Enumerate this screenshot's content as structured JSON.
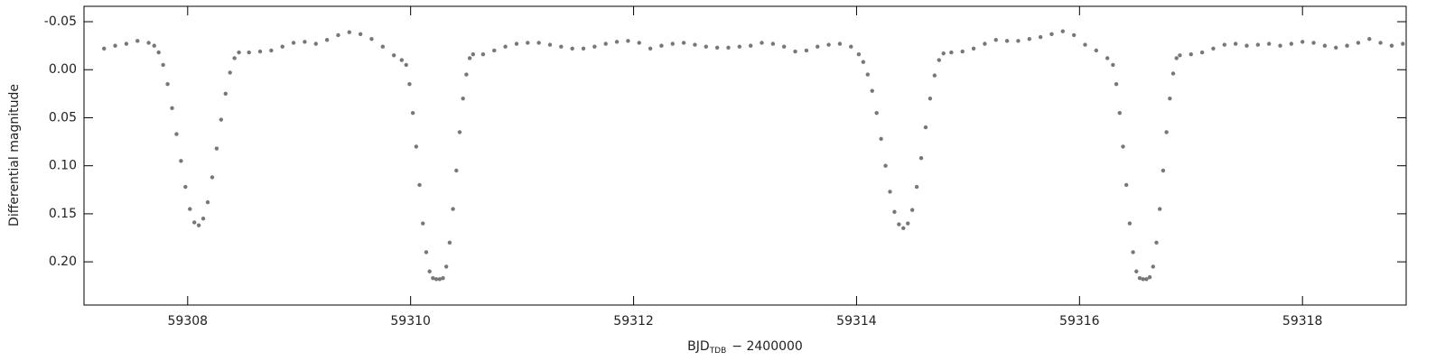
{
  "chart_data": {
    "type": "scatter",
    "y_label": "Differential magnitude",
    "x_label": {
      "main": "BJD",
      "sub": "TDB",
      "rest": "− 2400000"
    },
    "color": "#777777",
    "xlim": [
      59307.07,
      59318.93
    ],
    "ylim": [
      -0.066,
      0.245
    ],
    "y_inverted": true,
    "xticks": [
      59308,
      59310,
      59312,
      59314,
      59316,
      59318
    ],
    "yticks": [
      -0.05,
      {
        "value": 0,
        "label": "0.00"
      },
      0.05,
      {
        "value": 0.1,
        "label": "0.10"
      },
      0.15,
      {
        "value": 0.2,
        "label": "0.20"
      }
    ],
    "x": [
      59307.25,
      59307.35,
      59307.45,
      59307.55,
      59307.65,
      59307.7,
      59307.74,
      59307.78,
      59307.82,
      59307.86,
      59307.9,
      59307.94,
      59307.98,
      59308.02,
      59308.06,
      59308.1,
      59308.14,
      59308.18,
      59308.22,
      59308.26,
      59308.3,
      59308.34,
      59308.38,
      59308.42,
      59308.46,
      59308.55,
      59308.65,
      59308.75,
      59308.85,
      59308.95,
      59309.05,
      59309.15,
      59309.25,
      59309.35,
      59309.45,
      59309.55,
      59309.65,
      59309.75,
      59309.85,
      59309.92,
      59309.96,
      59309.99,
      59310.02,
      59310.05,
      59310.08,
      59310.11,
      59310.14,
      59310.17,
      59310.2,
      59310.23,
      59310.26,
      59310.29,
      59310.32,
      59310.35,
      59310.38,
      59310.41,
      59310.44,
      59310.47,
      59310.5,
      59310.53,
      59310.56,
      59310.65,
      59310.75,
      59310.85,
      59310.95,
      59311.05,
      59311.15,
      59311.25,
      59311.35,
      59311.45,
      59311.55,
      59311.65,
      59311.75,
      59311.85,
      59311.95,
      59312.05,
      59312.15,
      59312.25,
      59312.35,
      59312.45,
      59312.55,
      59312.65,
      59312.75,
      59312.85,
      59312.95,
      59313.05,
      59313.15,
      59313.25,
      59313.35,
      59313.45,
      59313.55,
      59313.65,
      59313.75,
      59313.85,
      59313.95,
      59314.02,
      59314.06,
      59314.1,
      59314.14,
      59314.18,
      59314.22,
      59314.26,
      59314.3,
      59314.34,
      59314.38,
      59314.42,
      59314.46,
      59314.5,
      59314.54,
      59314.58,
      59314.62,
      59314.66,
      59314.7,
      59314.74,
      59314.78,
      59314.85,
      59314.95,
      59315.05,
      59315.15,
      59315.25,
      59315.35,
      59315.45,
      59315.55,
      59315.65,
      59315.75,
      59315.85,
      59315.95,
      59316.05,
      59316.15,
      59316.25,
      59316.3,
      59316.33,
      59316.36,
      59316.39,
      59316.42,
      59316.45,
      59316.48,
      59316.51,
      59316.54,
      59316.57,
      59316.6,
      59316.63,
      59316.66,
      59316.69,
      59316.72,
      59316.75,
      59316.78,
      59316.81,
      59316.84,
      59316.87,
      59316.9,
      59317.0,
      59317.1,
      59317.2,
      59317.3,
      59317.4,
      59317.5,
      59317.6,
      59317.7,
      59317.8,
      59317.9,
      59318.0,
      59318.1,
      59318.2,
      59318.3,
      59318.4,
      59318.5,
      59318.6,
      59318.7,
      59318.8,
      59318.9
    ],
    "values": [
      -0.022,
      -0.025,
      -0.027,
      -0.03,
      -0.028,
      -0.025,
      -0.018,
      -0.005,
      0.015,
      0.04,
      0.067,
      0.095,
      0.122,
      0.145,
      0.159,
      0.162,
      0.155,
      0.138,
      0.112,
      0.082,
      0.052,
      0.025,
      0.003,
      -0.012,
      -0.018,
      -0.018,
      -0.019,
      -0.02,
      -0.024,
      -0.028,
      -0.029,
      -0.027,
      -0.031,
      -0.036,
      -0.039,
      -0.037,
      -0.032,
      -0.024,
      -0.015,
      -0.01,
      -0.005,
      0.015,
      0.045,
      0.08,
      0.12,
      0.16,
      0.19,
      0.21,
      0.217,
      0.218,
      0.218,
      0.217,
      0.205,
      0.18,
      0.145,
      0.105,
      0.065,
      0.03,
      0.005,
      -0.012,
      -0.016,
      -0.016,
      -0.02,
      -0.024,
      -0.027,
      -0.028,
      -0.028,
      -0.026,
      -0.024,
      -0.022,
      -0.022,
      -0.024,
      -0.027,
      -0.029,
      -0.03,
      -0.028,
      -0.022,
      -0.025,
      -0.027,
      -0.028,
      -0.026,
      -0.024,
      -0.023,
      -0.023,
      -0.024,
      -0.025,
      -0.028,
      -0.027,
      -0.024,
      -0.019,
      -0.02,
      -0.024,
      -0.026,
      -0.027,
      -0.024,
      -0.016,
      -0.008,
      0.005,
      0.022,
      0.045,
      0.072,
      0.1,
      0.127,
      0.148,
      0.161,
      0.165,
      0.16,
      0.146,
      0.122,
      0.092,
      0.06,
      0.03,
      0.006,
      -0.01,
      -0.017,
      -0.018,
      -0.019,
      -0.022,
      -0.027,
      -0.031,
      -0.03,
      -0.03,
      -0.032,
      -0.034,
      -0.037,
      -0.04,
      -0.036,
      -0.026,
      -0.02,
      -0.012,
      -0.005,
      0.015,
      0.045,
      0.08,
      0.12,
      0.16,
      0.19,
      0.21,
      0.217,
      0.218,
      0.218,
      0.216,
      0.205,
      0.18,
      0.145,
      0.105,
      0.065,
      0.03,
      0.004,
      -0.012,
      -0.015,
      -0.016,
      -0.018,
      -0.022,
      -0.026,
      -0.027,
      -0.025,
      -0.026,
      -0.027,
      -0.025,
      -0.027,
      -0.029,
      -0.028,
      -0.025,
      -0.023,
      -0.025,
      -0.028,
      -0.032,
      -0.028,
      -0.025,
      -0.027
    ]
  }
}
